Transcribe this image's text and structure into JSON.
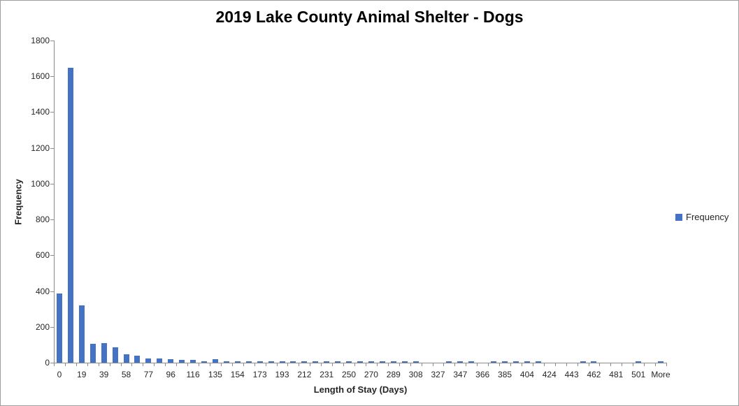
{
  "chart": {
    "title": "2019 Lake County Animal Shelter - Dogs",
    "x_axis_title": "Length of Stay (Days)",
    "y_axis_title": "Frequency",
    "legend_label": "Frequency",
    "bar_color": "#4472C4",
    "axis_color": "#8C8C8C",
    "text_color": "#262626"
  },
  "chart_data": {
    "type": "bar",
    "title": "2019 Lake County Animal Shelter - Dogs",
    "xlabel": "Length of Stay (Days)",
    "ylabel": "Frequency",
    "ylim": [
      0,
      1800
    ],
    "y_ticks": [
      0,
      200,
      400,
      600,
      800,
      1000,
      1200,
      1400,
      1600,
      1800
    ],
    "grid": false,
    "legend": [
      "Frequency"
    ],
    "legend_position": "right",
    "x_labels_shown": [
      "0",
      "19",
      "39",
      "58",
      "77",
      "96",
      "116",
      "135",
      "154",
      "173",
      "193",
      "212",
      "231",
      "250",
      "270",
      "289",
      "308",
      "327",
      "347",
      "366",
      "385",
      "404",
      "424",
      "443",
      "462",
      "481",
      "501",
      "More"
    ],
    "categories": [
      "0",
      "",
      "19",
      "",
      "39",
      "",
      "58",
      "",
      "77",
      "",
      "96",
      "",
      "116",
      "",
      "135",
      "",
      "154",
      "",
      "173",
      "",
      "193",
      "",
      "212",
      "",
      "231",
      "",
      "250",
      "",
      "270",
      "",
      "289",
      "",
      "308",
      "",
      "327",
      "",
      "347",
      "",
      "366",
      "",
      "385",
      "",
      "404",
      "",
      "424",
      "",
      "443",
      "",
      "462",
      "",
      "481",
      "",
      "501",
      "",
      "More"
    ],
    "values": [
      388,
      1648,
      320,
      105,
      110,
      87,
      45,
      40,
      23,
      24,
      18,
      15,
      15,
      9,
      18,
      8,
      8,
      8,
      9,
      7,
      8,
      7,
      7,
      6,
      7,
      7,
      6,
      7,
      7,
      6,
      7,
      6,
      7,
      0,
      0,
      7,
      7,
      7,
      0,
      7,
      7,
      7,
      7,
      7,
      0,
      0,
      0,
      7,
      7,
      0,
      0,
      0,
      7,
      0,
      8
    ]
  }
}
